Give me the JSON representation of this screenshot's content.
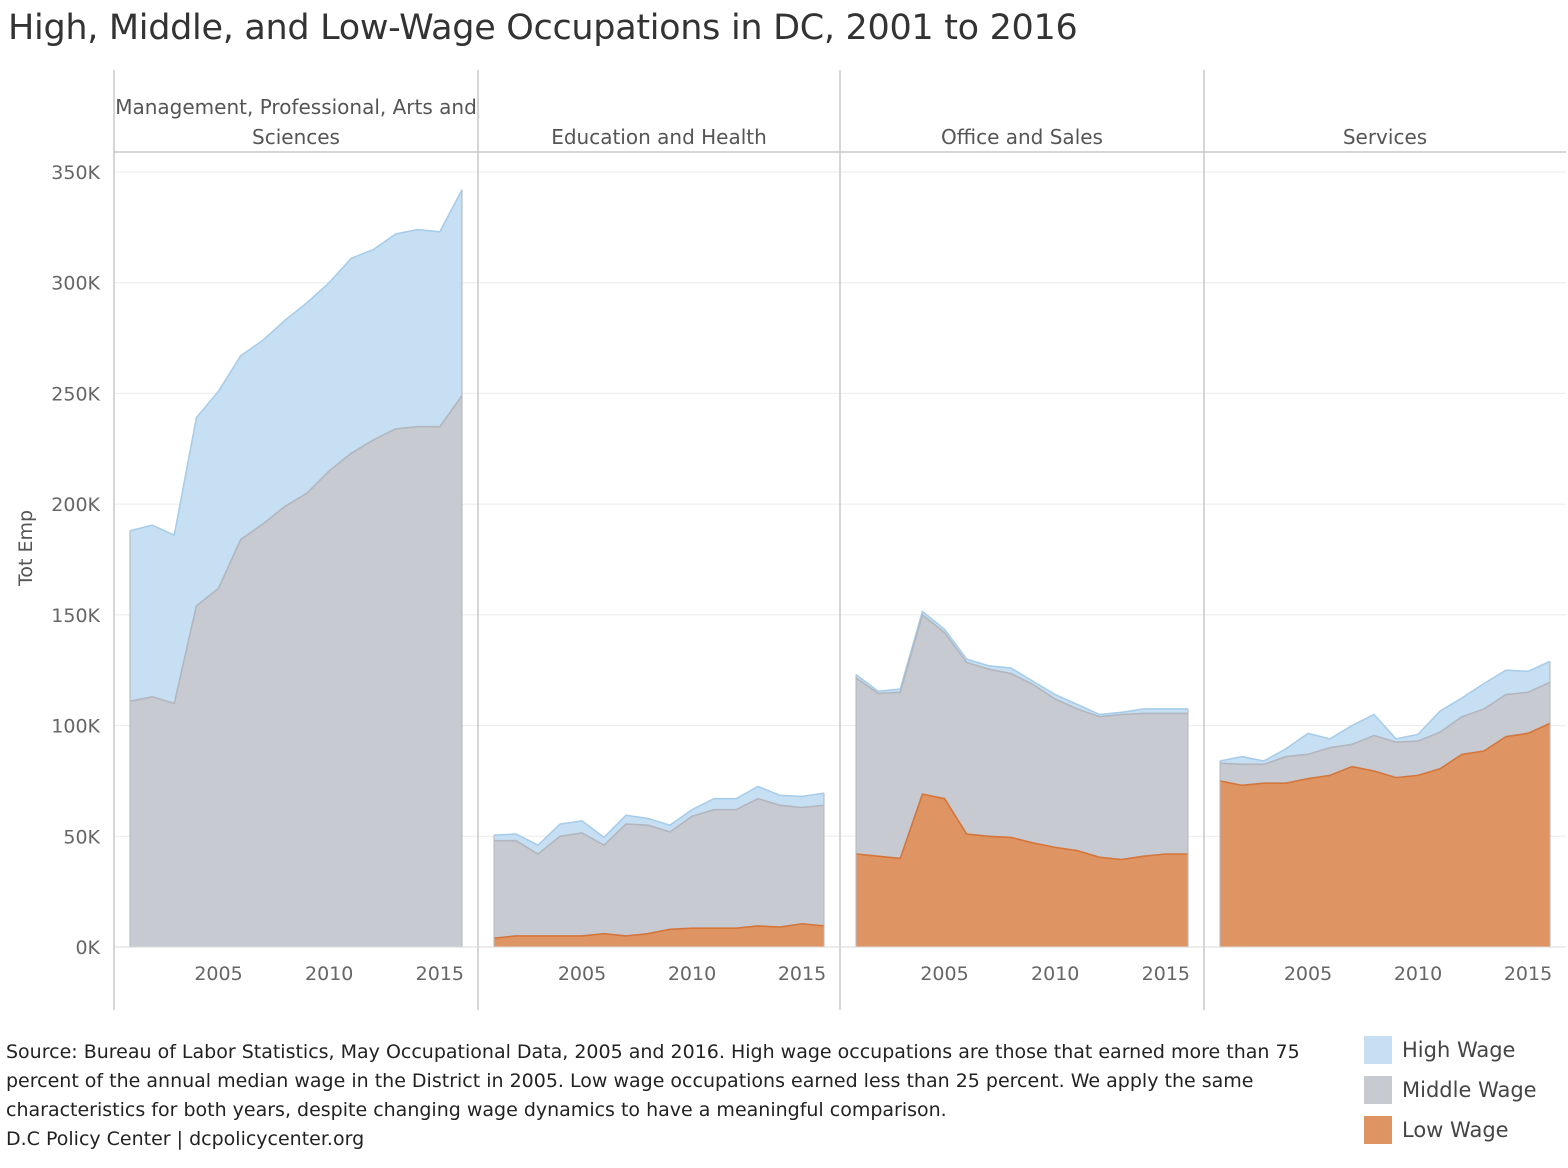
{
  "title": "High, Middle, and Low-Wage Occupations in DC, 2001 to 2016",
  "source_lines": [
    "Source: Bureau of Labor Statistics, May Occupational Data, 2005 and 2016. High wage occupations are those that earned more than 75",
    "percent of the annual median wage in the District in 2005. Low wage occupations earned less than 25 percent. We apply the same",
    "characteristics for both years, despite changing wage dynamics to have a meaningful comparison.",
    "D.C Policy Center | dcpolicycenter.org"
  ],
  "legend": [
    {
      "label": "High Wage",
      "color": "#c6dff2"
    },
    {
      "label": "Middle Wage",
      "color": "#c7cad1"
    },
    {
      "label": "Low Wage",
      "color": "#df9563"
    }
  ],
  "chart_data": {
    "type": "area",
    "stacked": true,
    "ylabel": "Tot Emp",
    "ylim": [
      0,
      350000
    ],
    "yticks": [
      0,
      50000,
      100000,
      150000,
      200000,
      250000,
      300000,
      350000
    ],
    "ytick_labels": [
      "0K",
      "50K",
      "100K",
      "150K",
      "200K",
      "250K",
      "300K",
      "350K"
    ],
    "xlim": [
      2001,
      2016
    ],
    "xticks": [
      2005,
      2010,
      2015
    ],
    "xtick_labels": [
      "2005",
      "2010",
      "2015"
    ],
    "gridlines": true,
    "legend_position": "bottom-right",
    "colors": {
      "high": "#c6dff2",
      "middle": "#c7cad1",
      "low": "#df9563",
      "high_line": "#a8cdea",
      "middle_line": "#b2b6be",
      "low_line": "#d4763c"
    },
    "x": [
      2001,
      2002,
      2003,
      2004,
      2005,
      2006,
      2007,
      2008,
      2009,
      2010,
      2011,
      2012,
      2013,
      2014,
      2015,
      2016
    ],
    "panels": [
      {
        "name": "Management, Professional, Arts and Sciences",
        "name_lines": [
          "Management, Professional, Arts and",
          "Sciences"
        ],
        "series": [
          {
            "name": "Low Wage",
            "values": [
              0,
              0,
              0,
              0,
              0,
              0,
              0,
              0,
              0,
              0,
              0,
              0,
              0,
              0,
              0,
              0
            ]
          },
          {
            "name": "Middle Wage",
            "values": [
              111000,
              113000,
              110000,
              154000,
              162000,
              184000,
              191000,
              199000,
              205000,
              215000,
              223000,
              229000,
              234000,
              235000,
              235000,
              249000
            ]
          },
          {
            "name": "High Wage",
            "values": [
              77000,
              77500,
              76000,
              85000,
              89000,
              83000,
              83000,
              84000,
              86000,
              85000,
              88000,
              86000,
              88000,
              89000,
              88000,
              93000
            ]
          }
        ]
      },
      {
        "name": "Education and Health",
        "name_lines": [
          "Education and Health"
        ],
        "series": [
          {
            "name": "Low Wage",
            "values": [
              4000,
              5000,
              5000,
              5000,
              5000,
              6000,
              5000,
              6000,
              8000,
              8500,
              8500,
              8500,
              9500,
              9000,
              10500,
              9500
            ]
          },
          {
            "name": "Middle Wage",
            "values": [
              44000,
              43000,
              37000,
              45000,
              46500,
              40000,
              50500,
              49000,
              44000,
              50500,
              53500,
              53500,
              57500,
              55000,
              52500,
              54500
            ]
          },
          {
            "name": "High Wage",
            "values": [
              2500,
              3000,
              4000,
              5500,
              5500,
              3500,
              4000,
              3000,
              3000,
              3000,
              5000,
              5000,
              5500,
              4500,
              5000,
              5500
            ]
          }
        ]
      },
      {
        "name": "Office and Sales",
        "name_lines": [
          "Office and Sales"
        ],
        "series": [
          {
            "name": "Low Wage",
            "values": [
              42000,
              41000,
              40000,
              69000,
              67000,
              51000,
              50000,
              49500,
              47000,
              45000,
              43500,
              40500,
              39500,
              41000,
              42000,
              42000
            ]
          },
          {
            "name": "Middle Wage",
            "values": [
              79500,
              73500,
              75000,
              81000,
              75000,
              77500,
              75500,
              74000,
              71500,
              67000,
              64000,
              63500,
              65500,
              64500,
              63500,
              63500
            ]
          },
          {
            "name": "High Wage",
            "values": [
              1500,
              1000,
              1500,
              1500,
              1500,
              1500,
              1500,
              2500,
              1500,
              2000,
              2000,
              1000,
              1000,
              2000,
              2000,
              2000
            ]
          }
        ]
      },
      {
        "name": "Services",
        "name_lines": [
          "Services"
        ],
        "series": [
          {
            "name": "Low Wage",
            "values": [
              75000,
              73000,
              74000,
              74000,
              76000,
              77500,
              81500,
              79500,
              76500,
              77500,
              80500,
              87000,
              88500,
              95000,
              96500,
              101000
            ]
          },
          {
            "name": "Middle Wage",
            "values": [
              8000,
              9500,
              8500,
              12000,
              11000,
              12500,
              10000,
              16000,
              16000,
              15500,
              16500,
              17000,
              19000,
              19000,
              18500,
              18500
            ]
          },
          {
            "name": "High Wage",
            "values": [
              1000,
              3500,
              1500,
              3500,
              9500,
              4000,
              8500,
              9500,
              1500,
              3000,
              9500,
              8500,
              11500,
              11000,
              9500,
              9500
            ]
          }
        ]
      }
    ]
  }
}
